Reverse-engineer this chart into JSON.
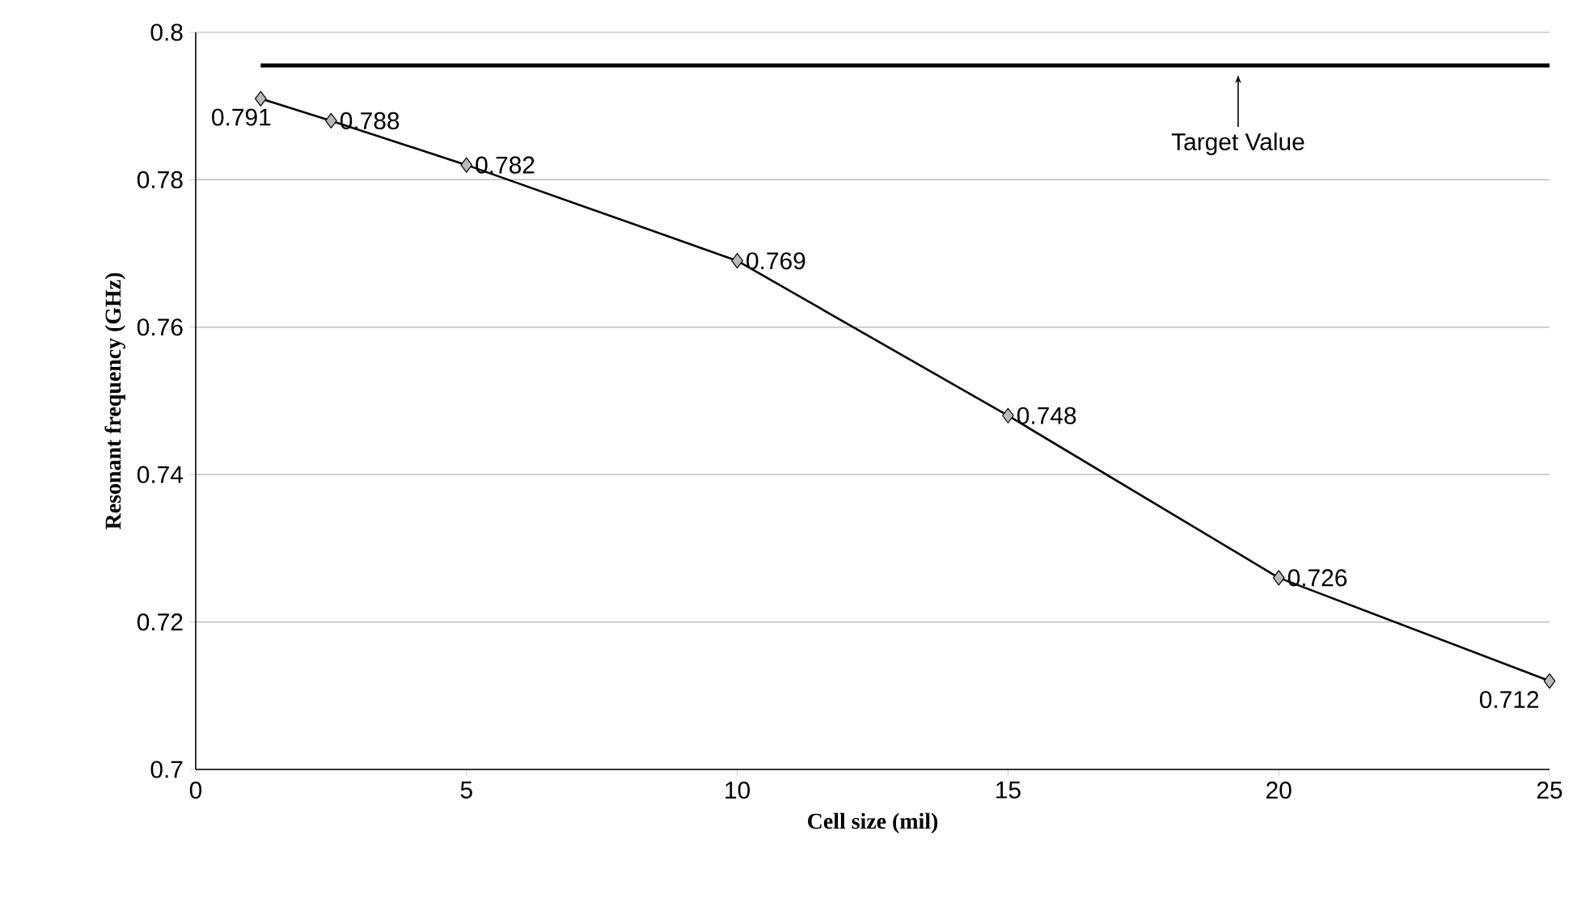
{
  "chart_data": {
    "type": "line",
    "xlabel": "Cell size (mil)",
    "ylabel": "Resonant frequency (GHz)",
    "xlim": [
      0,
      25
    ],
    "xticks": [
      0,
      5,
      10,
      15,
      20,
      25
    ],
    "ylim": [
      0.7,
      0.8
    ],
    "yticks": [
      0.7,
      0.72,
      0.74,
      0.76,
      0.78,
      0.8
    ],
    "grid": "y",
    "series": [
      {
        "x": [
          1.2,
          2.5,
          5,
          10,
          15,
          20,
          25
        ],
        "values": [
          0.791,
          0.788,
          0.782,
          0.769,
          0.748,
          0.726,
          0.712
        ],
        "value_labels": [
          "0.791",
          "0.788",
          "0.782",
          "0.769",
          "0.748",
          "0.726",
          "0.712"
        ],
        "color": "#000000",
        "marker": "diamond"
      },
      {
        "x": [
          1.2,
          25
        ],
        "values": [
          0.7955,
          0.7955
        ],
        "color": "#000000",
        "marker": "none"
      }
    ],
    "annotations": [
      {
        "text": "Target Value",
        "x": 19.25,
        "y": 0.7955
      }
    ]
  }
}
